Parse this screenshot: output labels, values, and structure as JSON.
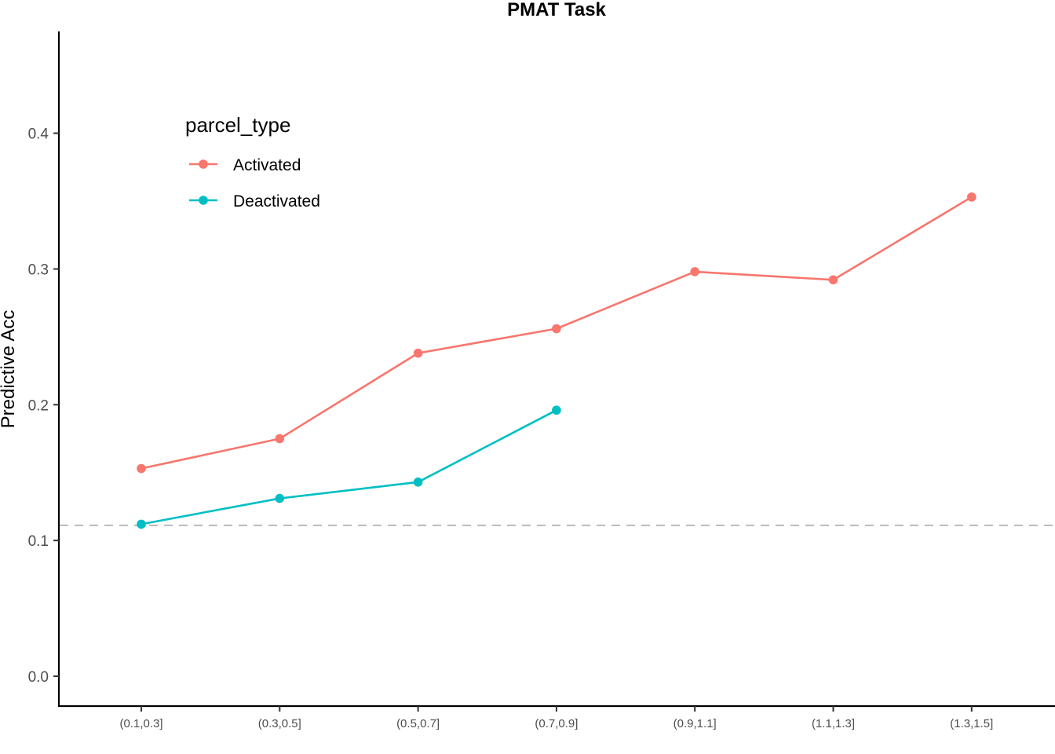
{
  "chart_data": {
    "type": "line",
    "title": "PMAT Task",
    "xlabel": "",
    "ylabel": "Predictive Acc",
    "categories": [
      "(0.1,0.3]",
      "(0.3,0.5]",
      "(0.5,0.7]",
      "(0.7,0.9]",
      "(0.9,1.1]",
      "(1.1,1.3]",
      "(1.3,1.5]"
    ],
    "yticks": [
      "0.0",
      "0.1",
      "0.2",
      "0.3",
      "0.4"
    ],
    "ylim": [
      -0.022,
      0.475
    ],
    "grid": false,
    "legend": {
      "title": "parcel_type",
      "position": "top-left"
    },
    "series": [
      {
        "name": "Activated",
        "color": "#F8766D",
        "values": [
          0.153,
          0.175,
          0.238,
          0.256,
          0.298,
          0.292,
          0.353
        ]
      },
      {
        "name": "Deactivated",
        "color": "#00BFC4",
        "values": [
          0.112,
          0.131,
          0.143,
          0.196,
          null,
          null,
          null
        ]
      }
    ],
    "reference_line": {
      "y": 0.1111,
      "style": "dashed",
      "color": "#BEBEBE"
    }
  }
}
